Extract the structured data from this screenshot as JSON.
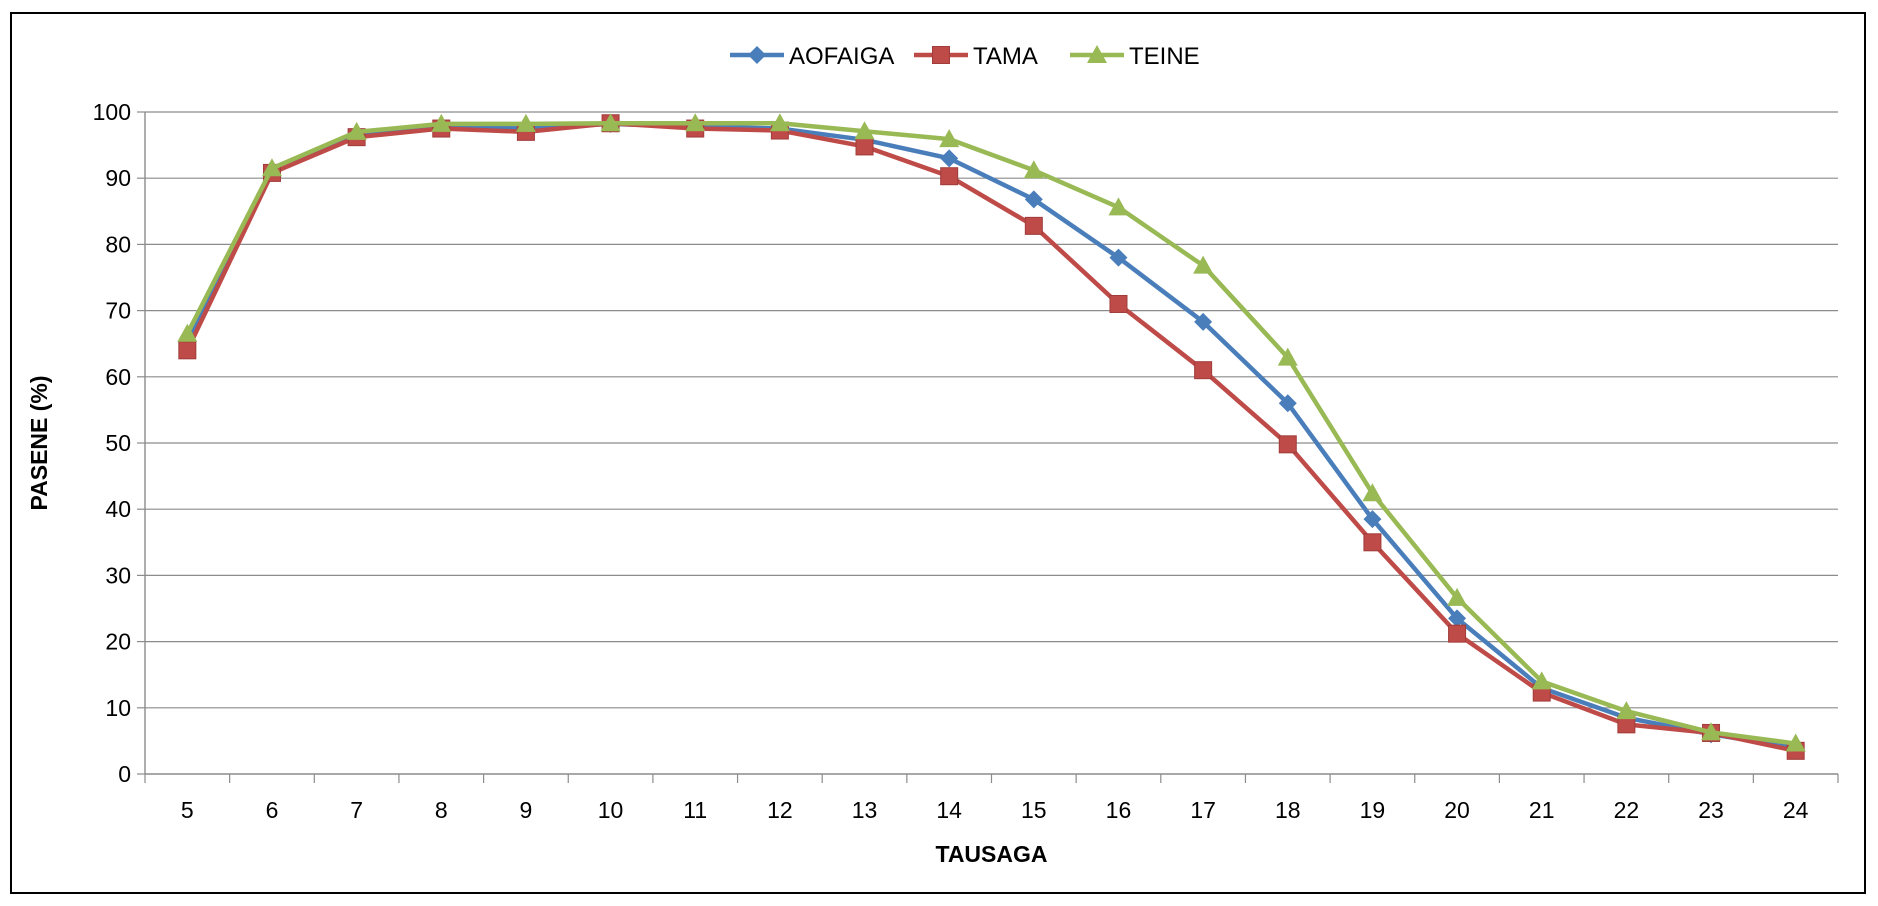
{
  "chart_data": {
    "type": "line",
    "title": "",
    "xlabel": "TAUSAGA",
    "ylabel": "PASENE (%)",
    "ylim": [
      0,
      100
    ],
    "yticks": [
      0,
      10,
      20,
      30,
      40,
      50,
      60,
      70,
      80,
      90,
      100
    ],
    "x": [
      5,
      6,
      7,
      8,
      9,
      10,
      11,
      12,
      13,
      14,
      15,
      16,
      17,
      18,
      19,
      20,
      21,
      22,
      23,
      24
    ],
    "grid": "horizontal",
    "legend": "top-center",
    "series": [
      {
        "name": "AOFAIGA",
        "color": "#4a7ebb",
        "marker": "diamond",
        "values": [
          65,
          91,
          96.5,
          97.8,
          97.5,
          98.2,
          97.8,
          97.5,
          95.8,
          93,
          86.8,
          78,
          68.3,
          56,
          38.5,
          23.5,
          13,
          8.5,
          6,
          4
        ]
      },
      {
        "name": "TAMA",
        "color": "#be4b48",
        "marker": "square",
        "values": [
          64,
          90.8,
          96.2,
          97.5,
          97,
          98.3,
          97.5,
          97.2,
          94.8,
          90.3,
          82.8,
          71,
          61,
          49.8,
          35,
          21.2,
          12.3,
          7.5,
          6.2,
          3.5
        ]
      },
      {
        "name": "TEINE",
        "color": "#98b954",
        "marker": "triangle",
        "values": [
          66.5,
          91.5,
          97,
          98.2,
          98.2,
          98.3,
          98.3,
          98.3,
          97.1,
          95.9,
          91.2,
          85.6,
          76.8,
          62.9,
          42.4,
          26.6,
          14,
          9.5,
          6.3,
          4.6
        ]
      }
    ]
  }
}
